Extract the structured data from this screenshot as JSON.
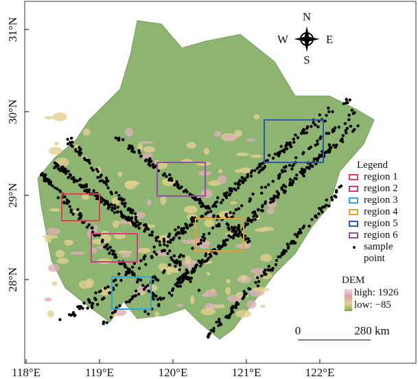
{
  "map": {
    "x_ticks": [
      "118°E",
      "119°E",
      "120°E",
      "121°E",
      "122°E"
    ],
    "y_ticks": [
      "31°N",
      "30°N",
      "29°N",
      "28°N"
    ],
    "compass": {
      "n": "N",
      "s": "S",
      "e": "E",
      "w": "W"
    },
    "legend": {
      "title": "Legend",
      "items": [
        "region 1",
        "region 2",
        "region 3",
        "region 4",
        "region 5",
        "region 6",
        "sample point"
      ]
    },
    "dem": {
      "title": "DEM",
      "high": "high: 1926",
      "low": "low: −85"
    },
    "scale_bar": {
      "start": "0",
      "end": "280 km"
    }
  }
}
